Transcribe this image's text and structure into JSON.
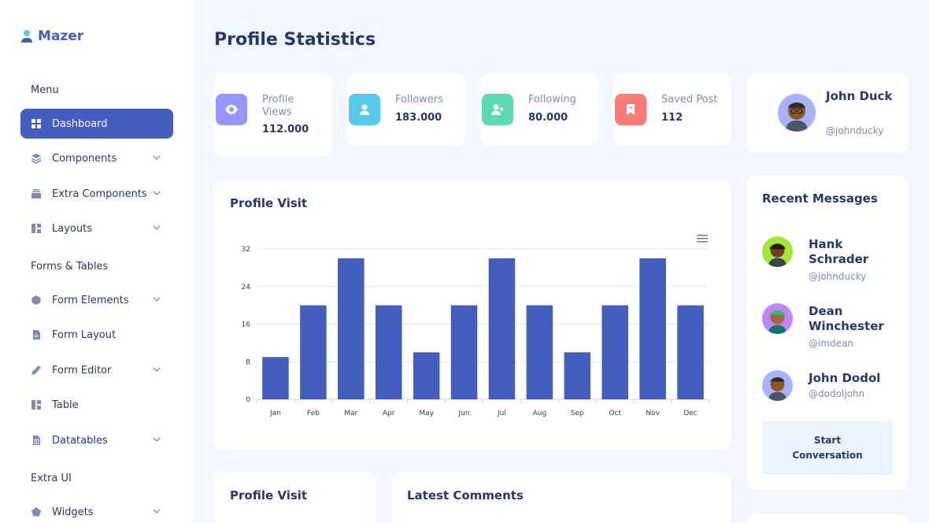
{
  "sidebar": {
    "brand": "Mazer",
    "sections": [
      "Menu",
      "Forms & Tables",
      "Extra UI"
    ],
    "items": [
      {
        "label": "Dashboard",
        "icon": "grid-icon",
        "active": true,
        "has_chevron": false
      },
      {
        "label": "Components",
        "icon": "stack-icon",
        "active": false,
        "has_chevron": true
      },
      {
        "label": "Extra Components",
        "icon": "collection-icon",
        "active": false,
        "has_chevron": true
      },
      {
        "label": "Layouts",
        "icon": "layout-icon",
        "active": false,
        "has_chevron": true
      },
      {
        "label": "Form Elements",
        "icon": "hexagon-icon",
        "active": false,
        "has_chevron": true
      },
      {
        "label": "Form Layout",
        "icon": "file-text-icon",
        "active": false,
        "has_chevron": false
      },
      {
        "label": "Form Editor",
        "icon": "pen-icon",
        "active": false,
        "has_chevron": true
      },
      {
        "label": "Table",
        "icon": "layout-icon",
        "active": false,
        "has_chevron": false
      },
      {
        "label": "Datatables",
        "icon": "spreadsheet-icon",
        "active": false,
        "has_chevron": true
      },
      {
        "label": "Widgets",
        "icon": "pentagon-icon",
        "active": false,
        "has_chevron": true
      }
    ]
  },
  "page": {
    "title": "Profile Statistics"
  },
  "stats": [
    {
      "label": "Profile Views",
      "value": "112.000",
      "color": "#9694ff",
      "icon": "eye-icon"
    },
    {
      "label": "Followers",
      "value": "183.000",
      "color": "#57caeb",
      "icon": "user-icon"
    },
    {
      "label": "Following",
      "value": "80.000",
      "color": "#5ddab4",
      "icon": "user-plus-icon"
    },
    {
      "label": "Saved Post",
      "value": "112",
      "color": "#ff7976",
      "icon": "bookmark-icon"
    }
  ],
  "profile": {
    "name": "John Duck",
    "handle": "@johnducky"
  },
  "visit_card": {
    "title": "Profile Visit"
  },
  "chart_data": {
    "type": "bar",
    "categories": [
      "Jan",
      "Feb",
      "Mar",
      "Apr",
      "May",
      "Jun",
      "Jul",
      "Aug",
      "Sep",
      "Oct",
      "Nov",
      "Dec"
    ],
    "values": [
      9,
      20,
      30,
      20,
      10,
      20,
      30,
      20,
      10,
      20,
      30,
      20
    ],
    "ylim": [
      0,
      32
    ],
    "yticks": [
      0,
      8,
      16,
      24,
      32
    ],
    "grid": true,
    "color": "#435ebe",
    "title": "",
    "xlabel": "",
    "ylabel": ""
  },
  "messages": {
    "title": "Recent Messages",
    "items": [
      {
        "name": "Hank Schrader",
        "handle": "@johnducky",
        "bg": "#a3e635"
      },
      {
        "name": "Dean Winchester",
        "handle": "@imdean",
        "bg": "#c084fc"
      },
      {
        "name": "John Dodol",
        "handle": "@dodoljohn",
        "bg": "#a5b4fc"
      }
    ],
    "button": "Start Conversation"
  },
  "bottom": {
    "visit_title": "Profile Visit",
    "comments_title": "Latest Comments"
  }
}
